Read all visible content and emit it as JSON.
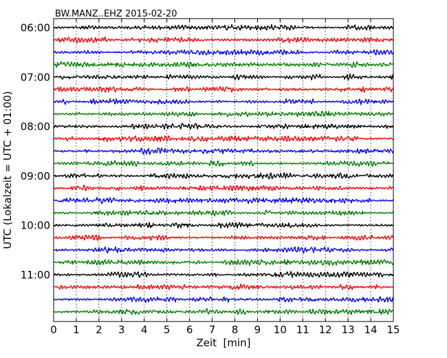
{
  "chart_data": {
    "type": "line",
    "title": "BW.MANZ..EHZ 2015-02-20",
    "xlabel": "Zeit  [min]",
    "ylabel": "UTC (Lokalzeit = UTC + 01:00)",
    "xlim": [
      0,
      15
    ],
    "x_ticks": [
      "0",
      "1",
      "2",
      "3",
      "4",
      "5",
      "6",
      "7",
      "8",
      "9",
      "10",
      "11",
      "12",
      "13",
      "14",
      "15"
    ],
    "y_ticks": [
      "06:00",
      "07:00",
      "08:00",
      "09:00",
      "10:00",
      "11:00"
    ],
    "grid": "vertical dotted",
    "trace_interval_minutes": 15,
    "trace_start": "06:00",
    "trace_count": 24,
    "trace_colors": [
      "#000000",
      "#ff0000",
      "#0000ff",
      "#007f00"
    ]
  }
}
